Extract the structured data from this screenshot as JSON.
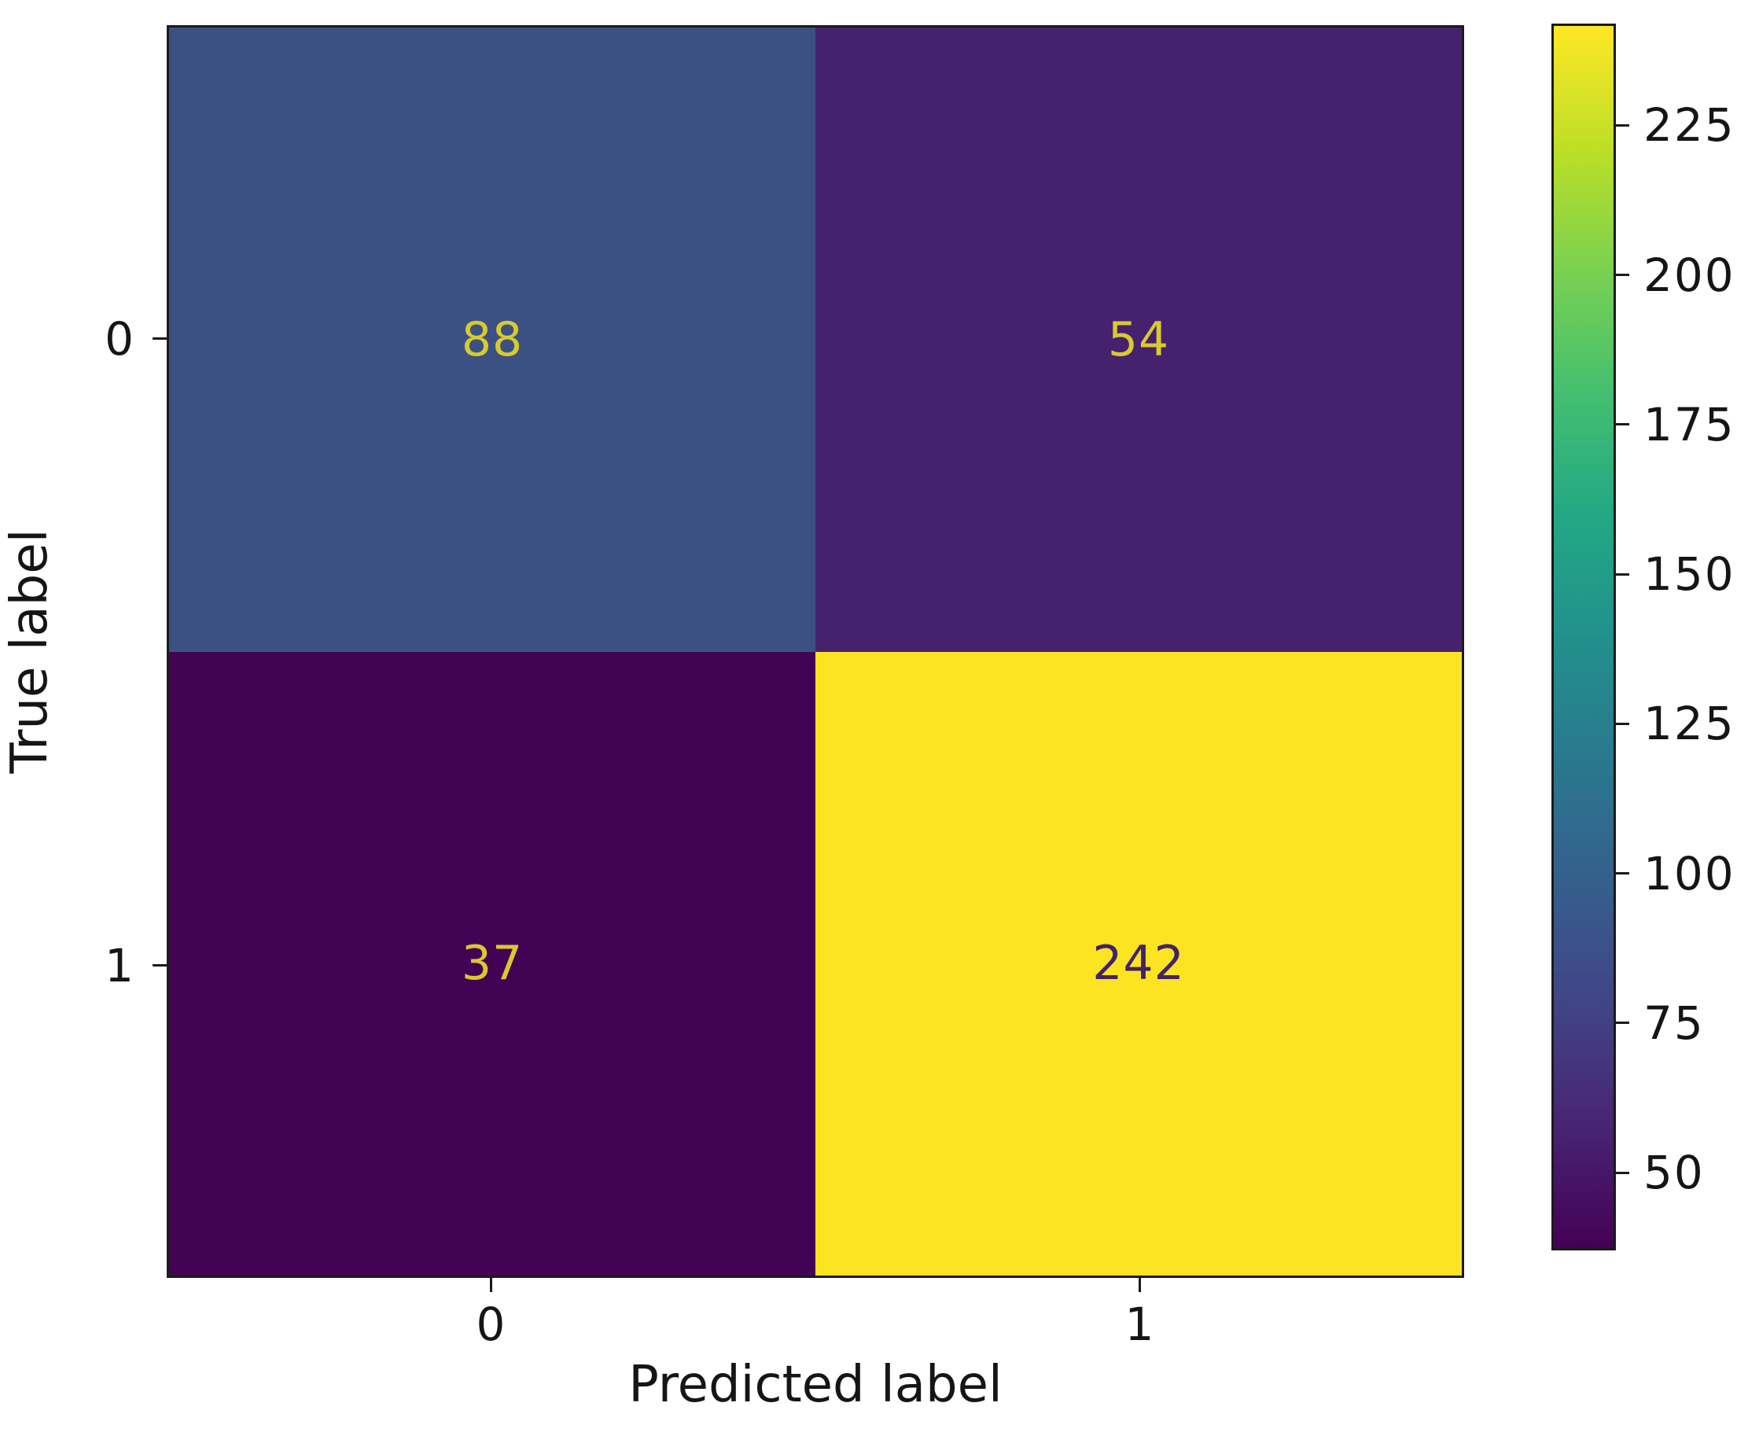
{
  "figure": {
    "background_color": "#ffffff",
    "spine_color": "#1a1a1a"
  },
  "chart_data": {
    "type": "heatmap",
    "subtype": "confusion-matrix",
    "title": "",
    "xlabel": "Predicted label",
    "ylabel": "True label",
    "x_tick_labels": [
      "0",
      "1"
    ],
    "y_tick_labels": [
      "0",
      "1"
    ],
    "matrix": [
      [
        88,
        54
      ],
      [
        37,
        242
      ]
    ],
    "vmin": 37,
    "vmax": 242,
    "colormap": "viridis",
    "colormap_stops": [
      "#440154",
      "#482475",
      "#414487",
      "#355f8d",
      "#2a788e",
      "#21918c",
      "#22a884",
      "#44bf70",
      "#7ad151",
      "#bddf26",
      "#fde725"
    ],
    "colorbar_ticks": [
      225,
      200,
      175,
      150,
      125,
      100,
      75,
      50
    ],
    "colorbar_position": "right",
    "grid": false,
    "legend": false,
    "cell_colors": [
      [
        "#3b5184",
        "#45216e"
      ],
      [
        "#430354",
        "#fde422"
      ]
    ],
    "cell_text_colors": [
      [
        "#d9c92f",
        "#d9c92f"
      ],
      [
        "#d9c92f",
        "#432266"
      ]
    ]
  }
}
